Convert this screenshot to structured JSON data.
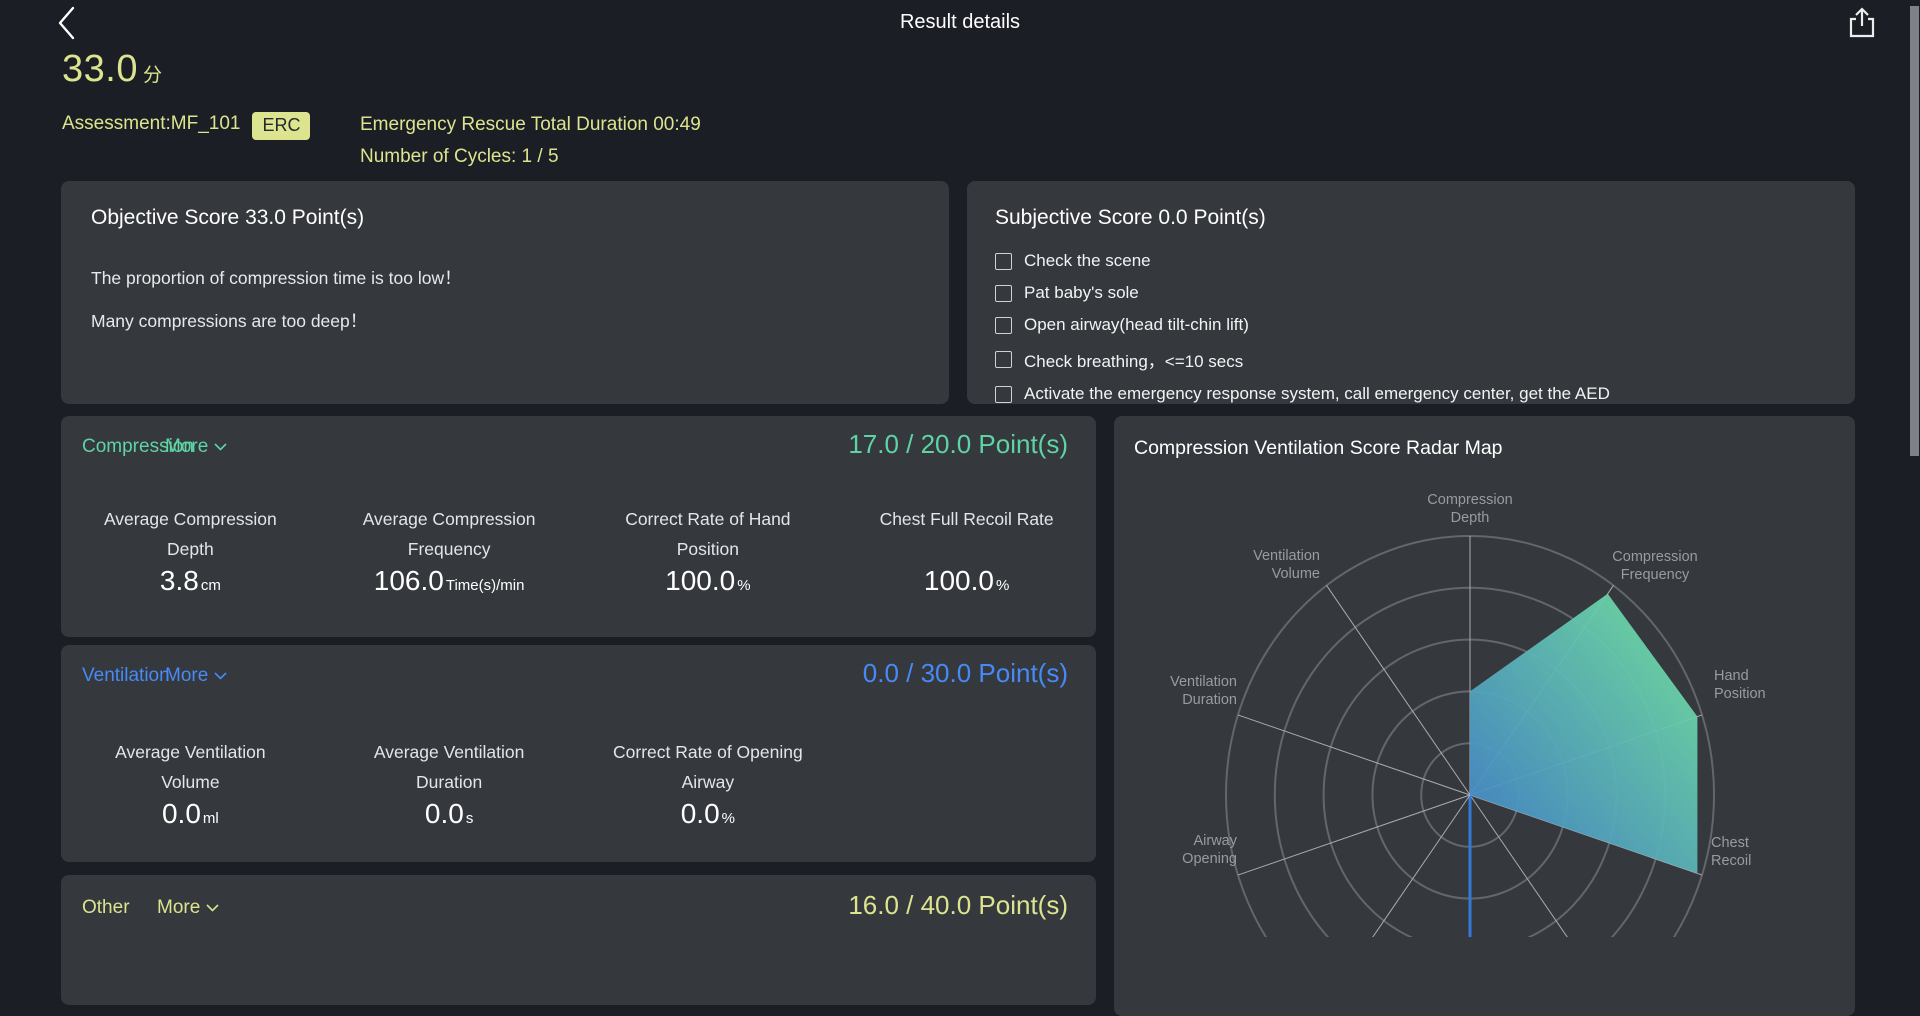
{
  "header": {
    "title": "Result details"
  },
  "summary": {
    "score_value": "33.0",
    "score_unit": "分",
    "assessment": "Assessment:MF_101",
    "badge": "ERC",
    "duration": "Emergency Rescue Total Duration  00:49",
    "cycles": "Number of Cycles: 1 / 5"
  },
  "objective": {
    "title": "Objective Score 33.0  Point(s)",
    "messages": [
      "The proportion of compression time is too low！",
      "Many compressions are too deep！"
    ]
  },
  "subjective": {
    "title": "Subjective Score 0.0  Point(s)",
    "items": [
      {
        "label": "Check the scene",
        "checked": false
      },
      {
        "label": "Pat baby's sole",
        "checked": false
      },
      {
        "label": "Open airway(head tilt-chin lift)",
        "checked": false
      },
      {
        "label": "Check breathing，<=10 secs",
        "checked": false
      },
      {
        "label": "Activate the emergency response system, call emergency center, get the AED",
        "checked": false
      }
    ]
  },
  "sections": {
    "compression": {
      "title": "Compression",
      "more": "More",
      "score": "17.0 / 20.0 Point(s)",
      "accent": "#5ed3a4",
      "metrics": [
        {
          "l1": "Average Compression",
          "l2": "Depth",
          "value": "3.8",
          "unit": "cm"
        },
        {
          "l1": "Average Compression",
          "l2": "Frequency",
          "value": "106.0",
          "unit": "Time(s)/min"
        },
        {
          "l1": "Correct Rate of Hand",
          "l2": "Position",
          "value": "100.0",
          "unit": "%"
        },
        {
          "l1": "Chest Full Recoil Rate",
          "l2": "",
          "value": "100.0",
          "unit": "%"
        }
      ]
    },
    "ventilation": {
      "title": "Ventilation",
      "more": "More",
      "score": "0.0 / 30.0 Point(s)",
      "accent": "#478af5",
      "metrics": [
        {
          "l1": "Average Ventilation",
          "l2": "Volume",
          "value": "0.0",
          "unit": "ml"
        },
        {
          "l1": "Average Ventilation",
          "l2": "Duration",
          "value": "0.0",
          "unit": "s"
        },
        {
          "l1": "Correct Rate of Opening",
          "l2": "Airway",
          "value": "0.0",
          "unit": "%"
        }
      ]
    },
    "other": {
      "title": "Other",
      "more": "More",
      "score": "16.0 / 40.0 Point(s)",
      "accent": "#dce48f"
    }
  },
  "radar": {
    "title": "Compression Ventilation Score Radar Map",
    "labels": {
      "depth": {
        "l1": "Compression",
        "l2": "Depth"
      },
      "frequency": {
        "l1": "Compression",
        "l2": "Frequency"
      },
      "hand": {
        "l1": "Hand",
        "l2": "Position"
      },
      "recoil": {
        "l1": "Chest",
        "l2": "Recoil"
      },
      "airway": {
        "l1": "Airway",
        "l2": "Opening"
      },
      "vent_duration": {
        "l1": "Ventilation",
        "l2": "Duration"
      },
      "vent_volume": {
        "l1": "Ventilation",
        "l2": "Volume"
      }
    }
  },
  "chart_data": {
    "type": "radar",
    "title": "Compression Ventilation Score Radar Map",
    "value_range": [
      0,
      1
    ],
    "rings": 5,
    "grid_on": true,
    "axes": [
      {
        "label": "Compression Depth",
        "angle_deg": 0,
        "value": 0.4
      },
      {
        "label": "Compression Frequency",
        "angle_deg": 36,
        "value": 0.96
      },
      {
        "label": "Hand Position",
        "angle_deg": 72,
        "value": 0.98
      },
      {
        "label": "Chest Recoil",
        "angle_deg": 108,
        "value": 0.98
      },
      {
        "label": "",
        "angle_deg": 144,
        "value": 0
      },
      {
        "label": "",
        "angle_deg": 180,
        "value": 0
      },
      {
        "label": "",
        "angle_deg": 216,
        "value": 0
      },
      {
        "label": "Airway Opening",
        "angle_deg": 252,
        "value": 0
      },
      {
        "label": "Ventilation Duration",
        "angle_deg": 288,
        "value": 0
      },
      {
        "label": "Ventilation Volume",
        "angle_deg": 324,
        "value": 0
      }
    ],
    "grid_color": "#63666b",
    "spoke_color": "#a9acb1",
    "highlight_axis_color": "#3579d8",
    "fill_gradient": [
      "#4180cd",
      "#74e6a0"
    ],
    "fill_opacity": 0.94
  },
  "colors": {
    "accent_yellow": "#dce48f",
    "accent_green": "#5ed3a4",
    "accent_blue": "#478af5",
    "panel_bg": "#35383d",
    "page_bg": "#1b1e24"
  }
}
